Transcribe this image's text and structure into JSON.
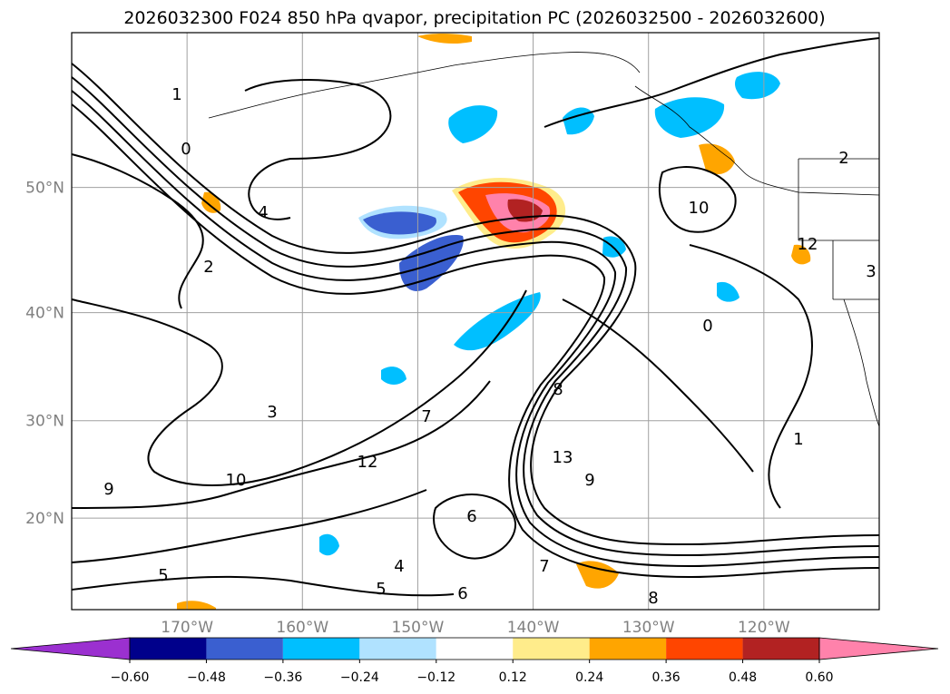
{
  "chart_data": {
    "type": "heatmap",
    "title": "2026032300 F024 850 hPa qvapor, precipitation PC (2026032500 - 2026032600)",
    "lat_labels": [
      "50°N",
      "40°N",
      "30°N",
      "20°N"
    ],
    "lat_values": [
      50,
      40,
      30,
      20
    ],
    "lon_labels": [
      "170°W",
      "160°W",
      "150°W",
      "140°W",
      "130°W",
      "120°W"
    ],
    "lon_values": [
      -170,
      -160,
      -150,
      -140,
      -130,
      -120
    ],
    "lon_range": [
      -180,
      -110
    ],
    "lat_range": [
      10,
      60
    ],
    "colorbar": {
      "ticks": [
        "−0.60",
        "−0.48",
        "−0.36",
        "−0.24",
        "−0.12",
        "0.12",
        "0.24",
        "0.36",
        "0.48",
        "0.60"
      ],
      "tick_values": [
        -0.6,
        -0.48,
        -0.36,
        -0.24,
        -0.12,
        0.12,
        0.24,
        0.36,
        0.48,
        0.6
      ],
      "colors": [
        "#9b30d0",
        "#00008b",
        "#3a5fd0",
        "#00bfff",
        "#b0e2ff",
        "#ffffff",
        "#ffec8b",
        "#ffa500",
        "#ff4500",
        "#b22222",
        "#ff82ab"
      ]
    },
    "contour_labels": [
      "0",
      "1",
      "2",
      "3",
      "4",
      "5",
      "6",
      "7",
      "8",
      "9",
      "10",
      "12",
      "13"
    ],
    "grid": true
  },
  "colors": {
    "grid": "#a0a0a0",
    "coast": "#000000",
    "contour": "#000000"
  }
}
